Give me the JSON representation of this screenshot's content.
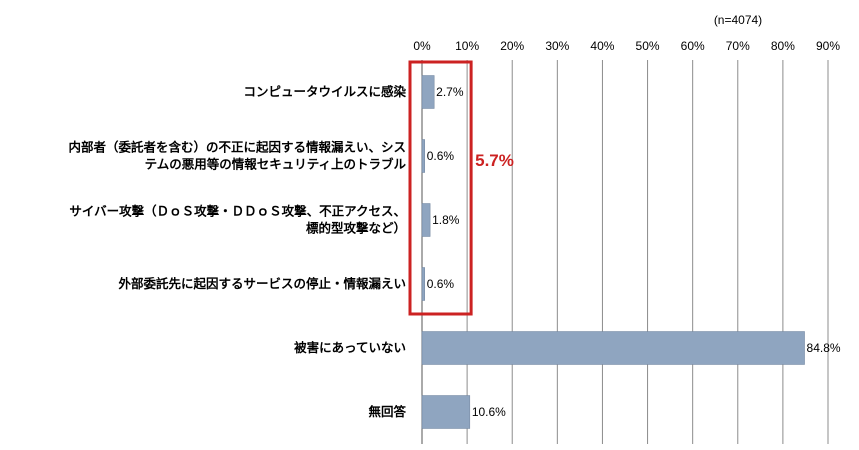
{
  "chart_data": {
    "type": "bar",
    "orientation": "horizontal",
    "sample_note": "(n=4074)",
    "categories": [
      [
        "コンピュータウイルスに感染"
      ],
      [
        "内部者（委託者を含む）の不正に起因する情報漏えい、シス",
        "テムの悪用等の情報セキュリティ上のトラブル"
      ],
      [
        "サイバー攻撃（ＤｏＳ攻撃・ＤＤｏＳ攻撃、不正アクセス、",
        "標的型攻撃など）"
      ],
      [
        "外部委託先に起因するサービスの停止・情報漏えい"
      ],
      [
        "被害にあっていない"
      ],
      [
        "無回答"
      ]
    ],
    "values": [
      2.7,
      0.6,
      1.8,
      0.6,
      84.8,
      10.6
    ],
    "value_labels": [
      "2.7%",
      "0.6%",
      "1.8%",
      "0.6%",
      "84.8%",
      "10.6%"
    ],
    "xlim": [
      0,
      90
    ],
    "ticks": [
      "0%",
      "10%",
      "20%",
      "30%",
      "40%",
      "50%",
      "60%",
      "70%",
      "80%",
      "90%"
    ],
    "tick_values": [
      0,
      10,
      20,
      30,
      40,
      50,
      60,
      70,
      80,
      90
    ],
    "grid": true,
    "bar_color": "#8fa5c0",
    "highlight": {
      "label": "5.7%",
      "color": "#cc2222",
      "covers_categories": [
        0,
        1,
        2,
        3
      ],
      "x_range": [
        0,
        10
      ]
    }
  }
}
